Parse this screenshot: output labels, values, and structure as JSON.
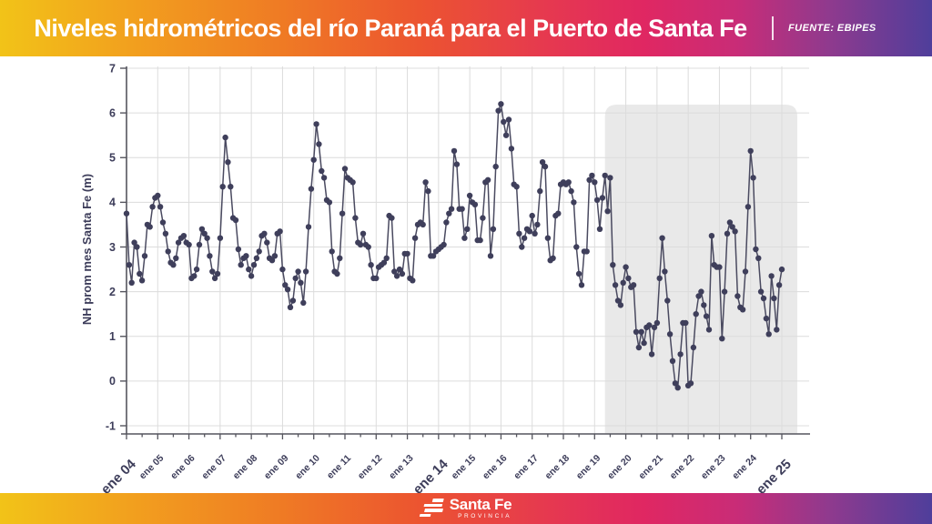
{
  "header": {
    "title": "Niveles hidrométricos del río Paraná para el Puerto de Santa Fe",
    "source": "FUENTE: EBIPES"
  },
  "footer": {
    "brand": "Santa Fe",
    "sub": "PROVINCIA"
  },
  "colors": {
    "text": "#3d3d5a",
    "axis": "#55555e",
    "grid": "#dcdcdc",
    "dot": "#3f3f5b",
    "line": "#4a4a60",
    "highlight": "#e9e9e9"
  },
  "chart_data": {
    "type": "line",
    "title": "Niveles hidrométricos del río Paraná para el Puerto de Santa Fe",
    "xlabel": "",
    "ylabel": "NH prom mes Santa Fe (m)",
    "ylim": [
      -1,
      7
    ],
    "grid": true,
    "x_start": "ene 2004",
    "x_step_months": 1,
    "x_tick_labels": [
      "ene 04",
      "ene 05",
      "ene 06",
      "ene 07",
      "ene 08",
      "ene 09",
      "ene 10",
      "ene 11",
      "ene 12",
      "ene 13",
      "ene 14",
      "ene 15",
      "ene 16",
      "ene 17",
      "ene 18",
      "ene 19",
      "ene 20",
      "ene 21",
      "ene 22",
      "ene 23",
      "ene 24",
      "ene 25"
    ],
    "emphasized_ticks": [
      "ene 04",
      "ene 14",
      "ene 25"
    ],
    "highlight_band": {
      "from_month": 184,
      "to_month": 258
    },
    "series": [
      {
        "name": "NH prom mes Santa Fe (m)",
        "values": [
          3.75,
          2.6,
          2.2,
          3.1,
          3.0,
          2.4,
          2.25,
          2.8,
          3.5,
          3.45,
          3.9,
          4.1,
          4.15,
          3.9,
          3.55,
          3.3,
          2.9,
          2.65,
          2.6,
          2.75,
          3.1,
          3.2,
          3.25,
          3.1,
          3.05,
          2.3,
          2.35,
          2.5,
          3.05,
          3.4,
          3.3,
          3.2,
          2.8,
          2.45,
          2.3,
          2.4,
          3.2,
          4.35,
          5.45,
          4.9,
          4.35,
          3.65,
          3.6,
          2.95,
          2.6,
          2.75,
          2.8,
          2.5,
          2.35,
          2.6,
          2.75,
          2.9,
          3.25,
          3.3,
          3.1,
          2.75,
          2.7,
          2.8,
          3.3,
          3.35,
          2.5,
          2.15,
          2.05,
          1.65,
          1.8,
          2.3,
          2.45,
          2.2,
          1.75,
          2.45,
          3.45,
          4.3,
          4.95,
          5.75,
          5.3,
          4.7,
          4.55,
          4.05,
          4.0,
          2.9,
          2.45,
          2.4,
          2.75,
          3.75,
          4.75,
          4.55,
          4.5,
          4.45,
          3.65,
          3.1,
          3.05,
          3.3,
          3.05,
          3.0,
          2.6,
          2.3,
          2.3,
          2.55,
          2.6,
          2.65,
          2.75,
          3.7,
          3.65,
          2.45,
          2.35,
          2.5,
          2.4,
          2.85,
          2.85,
          2.3,
          2.25,
          3.2,
          3.5,
          3.55,
          3.5,
          4.45,
          4.25,
          2.8,
          2.8,
          2.9,
          2.95,
          3.0,
          3.05,
          3.55,
          3.75,
          3.85,
          5.15,
          4.85,
          3.85,
          3.85,
          3.2,
          3.4,
          4.15,
          4.0,
          3.95,
          3.15,
          3.15,
          3.65,
          4.45,
          4.5,
          2.8,
          3.4,
          4.8,
          6.05,
          6.2,
          5.8,
          5.5,
          5.85,
          5.2,
          4.4,
          4.35,
          3.3,
          3.0,
          3.2,
          3.4,
          3.35,
          3.7,
          3.3,
          3.5,
          4.25,
          4.9,
          4.8,
          3.2,
          2.7,
          2.75,
          3.7,
          3.75,
          4.4,
          4.45,
          4.4,
          4.45,
          4.25,
          4.0,
          3.0,
          2.4,
          2.15,
          2.9,
          2.9,
          4.5,
          4.6,
          4.45,
          4.05,
          3.4,
          4.1,
          4.6,
          3.8,
          4.55,
          2.6,
          2.15,
          1.8,
          1.7,
          2.2,
          2.55,
          2.3,
          2.1,
          2.15,
          1.1,
          0.75,
          1.1,
          0.85,
          1.2,
          1.25,
          0.6,
          1.2,
          1.3,
          2.3,
          3.2,
          2.45,
          1.8,
          1.05,
          0.45,
          -0.05,
          -0.15,
          0.6,
          1.3,
          1.3,
          -0.1,
          -0.05,
          0.75,
          1.5,
          1.9,
          2.0,
          1.7,
          1.45,
          1.15,
          3.25,
          2.6,
          2.55,
          2.55,
          0.95,
          2.0,
          3.3,
          3.55,
          3.45,
          3.35,
          1.9,
          1.65,
          1.6,
          2.45,
          3.9,
          5.15,
          4.55,
          2.95,
          2.75,
          2.0,
          1.85,
          1.4,
          1.05,
          2.35,
          1.85,
          1.15,
          2.15,
          2.5
        ]
      }
    ],
    "legend": false
  }
}
